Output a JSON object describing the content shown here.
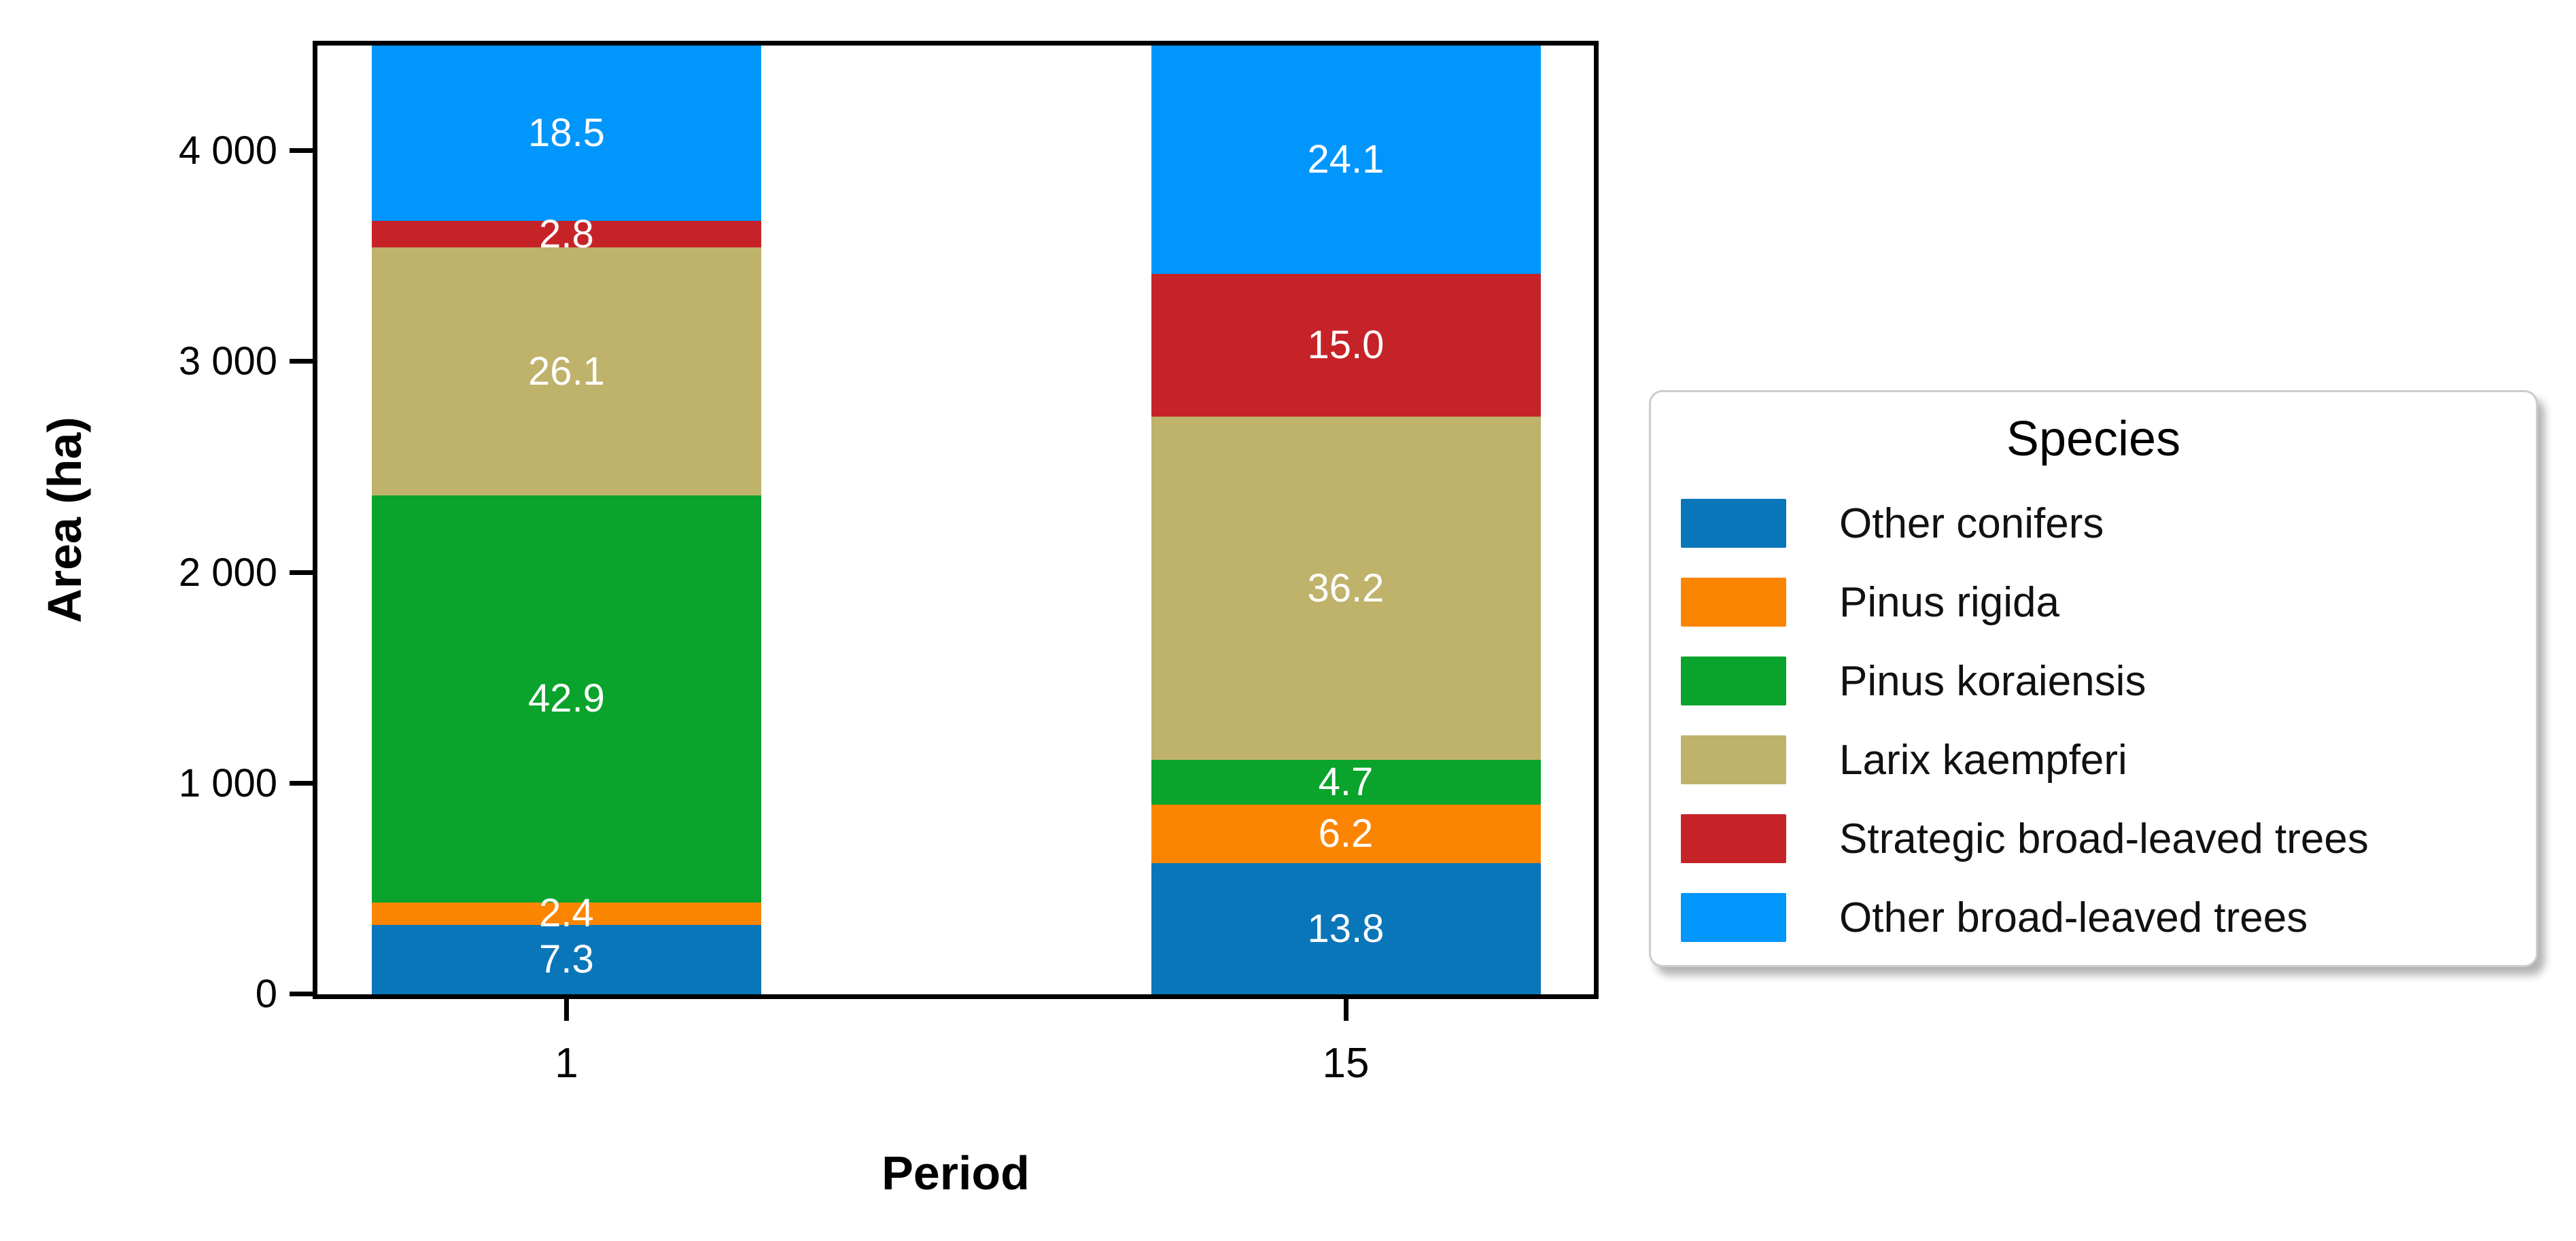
{
  "figure": {
    "background": "#ffffff"
  },
  "y_axis": {
    "label": "Area (ha)",
    "tick_values": [
      0,
      1000,
      2000,
      3000,
      4000
    ],
    "tick_labels": [
      "0",
      "1 000",
      "2 000",
      "3 000",
      "4 000"
    ]
  },
  "x_axis": {
    "label": "Period",
    "tick_labels": [
      "1",
      "15"
    ]
  },
  "chart_data": {
    "type": "bar",
    "stacked": true,
    "title": "",
    "xlabel": "Period",
    "ylabel": "Area (ha)",
    "categories": [
      "1",
      "15"
    ],
    "series": [
      {
        "name": "Other conifers",
        "color": "#0A76BA",
        "values": [
          7.3,
          13.8
        ],
        "labels": [
          "7.3",
          "13.8"
        ]
      },
      {
        "name": "Pinus rigida",
        "color": "#FB8500",
        "values": [
          2.4,
          6.2
        ],
        "labels": [
          "2.4",
          "6.2"
        ]
      },
      {
        "name": "Pinus koraiensis",
        "color": "#0AA32C",
        "values": [
          42.9,
          4.7
        ],
        "labels": [
          "42.9",
          "4.7"
        ]
      },
      {
        "name": "Larix kaempferi",
        "color": "#BFB26B",
        "values": [
          26.1,
          36.2
        ],
        "labels": [
          "26.1",
          "36.2"
        ]
      },
      {
        "name": "Strategic broad-leaved trees",
        "color": "#C62328",
        "values": [
          2.8,
          15.0
        ],
        "labels": [
          "2.8",
          "15.0"
        ]
      },
      {
        "name": "Other broad-leaved trees",
        "color": "#0096FC",
        "values": [
          18.5,
          24.1
        ],
        "labels": [
          "18.5",
          "24.1"
        ]
      }
    ],
    "segment_values_note": "printed labels are percent shares of each stacked bar; each bar totals 100",
    "ylim": [
      0,
      4500
    ],
    "yticks": [
      0,
      1000,
      2000,
      3000,
      4000
    ],
    "ytick_labels": [
      "0",
      "1 000",
      "2 000",
      "3 000",
      "4 000"
    ],
    "legend_title": "Species",
    "legend_position": "right of plot",
    "grid": false
  }
}
